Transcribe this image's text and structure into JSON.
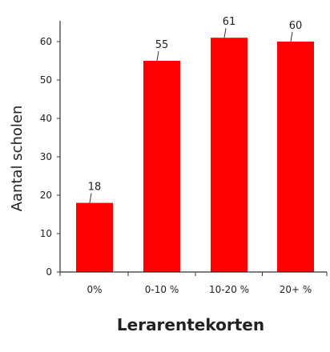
{
  "chart_data": {
    "type": "bar",
    "categories": [
      "0%",
      "0-10 %",
      "10-20 %",
      "20+ %"
    ],
    "values": [
      18,
      55,
      61,
      60
    ],
    "data_labels": [
      "18",
      "55",
      "61",
      "60"
    ],
    "title": "",
    "xlabel": "Lerarentekorten",
    "ylabel": "Aantal scholen",
    "ylim": [
      0,
      65
    ],
    "yticks": [
      0,
      10,
      20,
      30,
      40,
      50,
      60
    ],
    "grid": false,
    "legend": "none",
    "bar_color": "#ff0000",
    "axis_color": "#333333"
  }
}
